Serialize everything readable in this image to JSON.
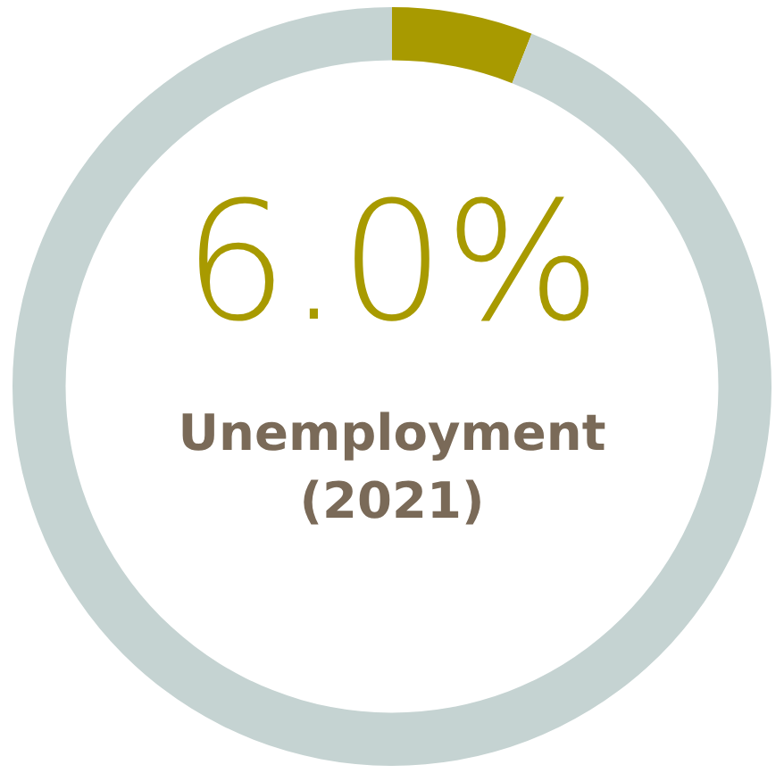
{
  "chart_data": {
    "type": "donut",
    "title": "Unemployment (2021)",
    "categories": [
      null,
      null
    ],
    "values": [
      6.0,
      94.0
    ],
    "colors": [
      "#a89a00",
      "#c5d3d2"
    ],
    "value_labels": [
      "6.0%",
      null
    ],
    "legend": false
  }
}
